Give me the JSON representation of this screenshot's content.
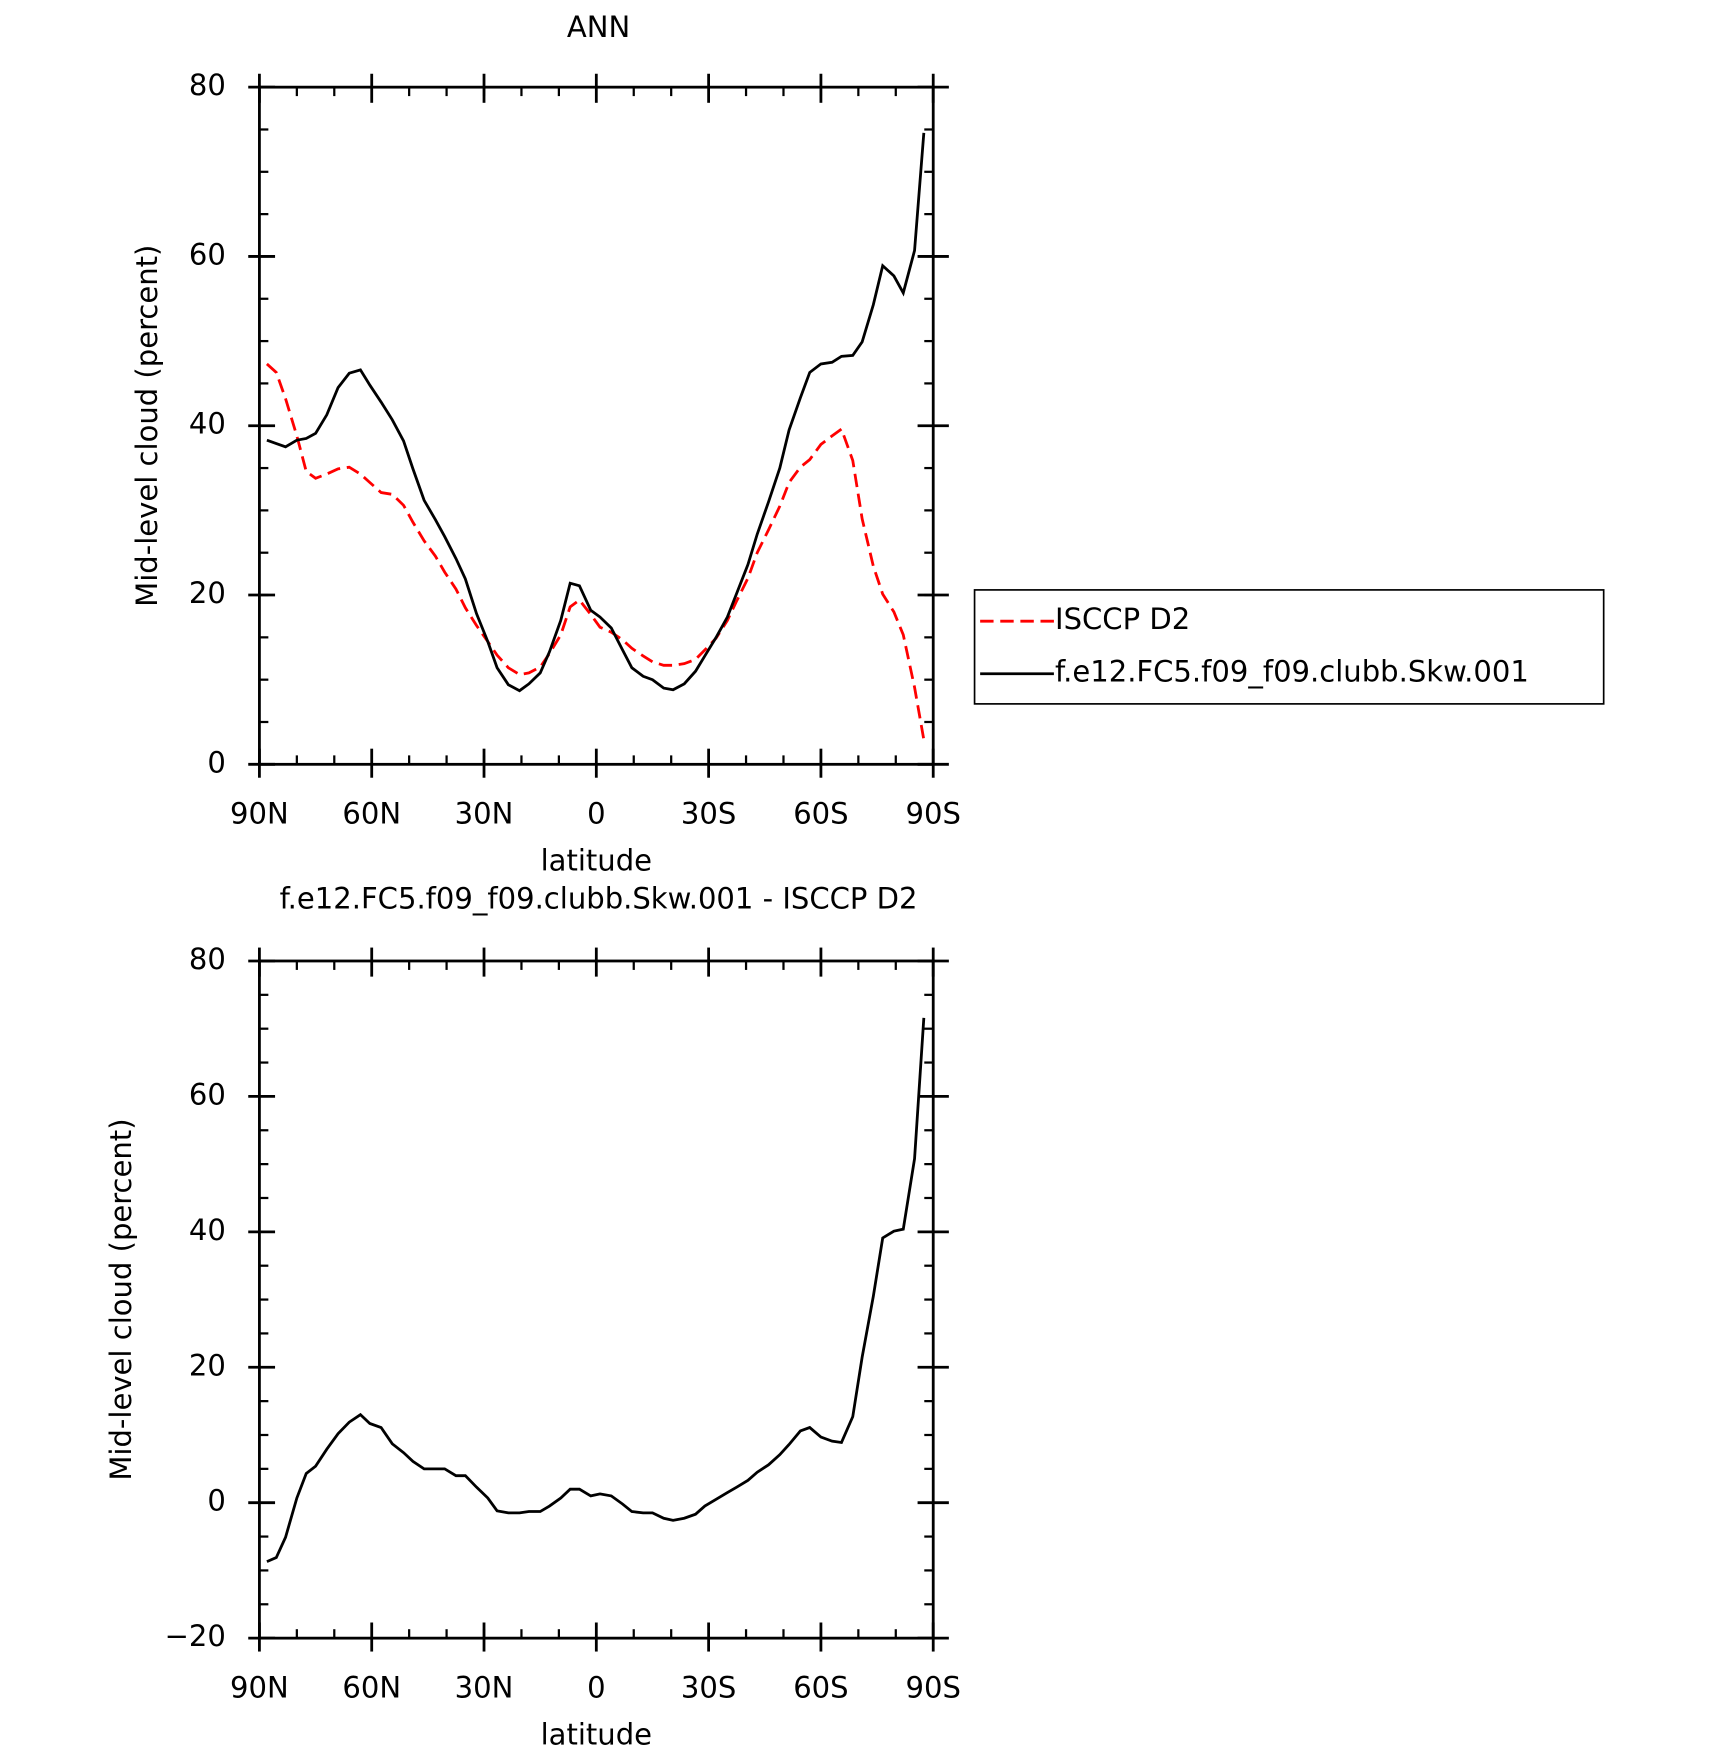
{
  "chart_data": [
    {
      "type": "line",
      "title": "ANN",
      "xlabel": "latitude",
      "ylabel": "Mid-level cloud (percent)",
      "xlim": [
        90,
        -90
      ],
      "ylim": [
        0,
        80
      ],
      "xticks": [
        {
          "value": 90,
          "label": "90N"
        },
        {
          "value": 60,
          "label": "60N"
        },
        {
          "value": 30,
          "label": "30N"
        },
        0,
        {
          "value": -30,
          "label": "30S"
        },
        {
          "value": -60,
          "label": "60S"
        },
        {
          "value": -90,
          "label": "90S"
        }
      ],
      "yticks": [
        0,
        20,
        40,
        60,
        80
      ],
      "legend": "right",
      "x": [
        88,
        85.5,
        83,
        80,
        77.5,
        75,
        72,
        69,
        66,
        63,
        60.5,
        57.5,
        54.5,
        51.5,
        49,
        46,
        43,
        40.5,
        37.5,
        35,
        32,
        29,
        26.5,
        23.5,
        20.5,
        18,
        15,
        12.5,
        9.5,
        7,
        4.5,
        1.5,
        -1,
        -4,
        -7,
        -9.5,
        -12.5,
        -15,
        -18,
        -20.5,
        -23.5,
        -26.5,
        -29,
        -32,
        -35,
        -37.5,
        -40.5,
        -43,
        -46,
        -49,
        -51.5,
        -54.5,
        -57,
        -60,
        -63,
        -65.5,
        -68.5,
        -71,
        -74,
        -76.5,
        -79.5,
        -82,
        -85,
        -87.5
      ],
      "series": [
        {
          "name": "ISCCP D2",
          "color": "#ff0000",
          "dash": true,
          "values": [
            47.3,
            46.3,
            43.2,
            38.8,
            34.6,
            33.8,
            34.3,
            34.9,
            35.1,
            34.3,
            33.3,
            32.1,
            31.9,
            30.6,
            28.6,
            26.4,
            24.6,
            22.7,
            20.7,
            18.5,
            16.4,
            14.5,
            12.9,
            11.4,
            10.6,
            10.8,
            11.5,
            13.1,
            15.3,
            18.6,
            19.4,
            17.7,
            16.2,
            15.6,
            14.7,
            13.7,
            12.8,
            12.1,
            11.7,
            11.7,
            11.9,
            12.4,
            13.5,
            14.9,
            17.0,
            19.3,
            22.0,
            25.0,
            27.7,
            30.5,
            33.3,
            35.1,
            36.0,
            37.8,
            38.8,
            39.6,
            35.9,
            29.0,
            23.4,
            20.1,
            18.0,
            15.3,
            9.1,
            2.9
          ]
        },
        {
          "name": "f.e12.FC5.f09_f09.clubb.Skw.001",
          "color": "#000000",
          "dash": false,
          "values": [
            38.3,
            37.9,
            37.5,
            38.3,
            38.5,
            39.1,
            41.3,
            44.5,
            46.2,
            46.6,
            44.8,
            42.8,
            40.7,
            38.2,
            34.9,
            31.2,
            28.9,
            26.9,
            24.3,
            21.9,
            17.8,
            14.5,
            11.4,
            9.4,
            8.7,
            9.5,
            10.8,
            13.3,
            17.0,
            21.4,
            21.1,
            18.2,
            17.4,
            16.1,
            13.5,
            11.4,
            10.4,
            10.0,
            9.0,
            8.8,
            9.5,
            11.0,
            12.8,
            15.0,
            17.4,
            20.2,
            23.6,
            27.2,
            31.0,
            35.0,
            39.5,
            43.3,
            46.3,
            47.3,
            47.5,
            48.2,
            48.3,
            49.9,
            54.3,
            58.9,
            57.7,
            55.7,
            60.7,
            74.6
          ]
        }
      ]
    },
    {
      "type": "line",
      "title": "f.e12.FC5.f09_f09.clubb.Skw.001 - ISCCP D2",
      "xlabel": "latitude",
      "ylabel": "Mid-level cloud (percent)",
      "xlim": [
        90,
        -90
      ],
      "ylim": [
        -20,
        80
      ],
      "xticks": [
        {
          "value": 90,
          "label": "90N"
        },
        {
          "value": 60,
          "label": "60N"
        },
        {
          "value": 30,
          "label": "30N"
        },
        0,
        {
          "value": -30,
          "label": "30S"
        },
        {
          "value": -60,
          "label": "60S"
        },
        {
          "value": -90,
          "label": "90S"
        }
      ],
      "yticks": [
        {
          "value": -20,
          "label": "−20"
        },
        0,
        20,
        40,
        60,
        80
      ],
      "x": [
        88,
        85.5,
        83,
        80,
        77.5,
        75,
        72,
        69,
        66,
        63,
        60.5,
        57.5,
        54.5,
        51.5,
        49,
        46,
        43,
        40.5,
        37.5,
        35,
        32,
        29,
        26.5,
        23.5,
        20.5,
        18,
        15,
        12.5,
        9.5,
        7,
        4.5,
        1.5,
        -1,
        -4,
        -7,
        -9.5,
        -12.5,
        -15,
        -18,
        -20.5,
        -23.5,
        -26.5,
        -29,
        -32,
        -35,
        -37.5,
        -40.5,
        -43,
        -46,
        -49,
        -51.5,
        -54.5,
        -57,
        -60,
        -63,
        -65.5,
        -68.5,
        -71,
        -74,
        -76.5,
        -79.5,
        -82,
        -85,
        -87.5
      ],
      "series": [
        {
          "color": "#000000",
          "dash": false,
          "values": [
            -8.7,
            -8.1,
            -5.1,
            0.7,
            4.3,
            5.4,
            7.9,
            10.2,
            11.9,
            13.0,
            11.7,
            11.1,
            8.7,
            7.4,
            6.1,
            5.0,
            5.0,
            5.0,
            4.0,
            4.0,
            2.3,
            0.7,
            -1.2,
            -1.5,
            -1.5,
            -1.3,
            -1.3,
            -0.5,
            0.7,
            2.0,
            2.0,
            1.0,
            1.3,
            1.0,
            -0.2,
            -1.3,
            -1.5,
            -1.5,
            -2.3,
            -2.6,
            -2.3,
            -1.7,
            -0.5,
            0.5,
            1.5,
            2.3,
            3.3,
            4.5,
            5.6,
            7.1,
            8.6,
            10.6,
            11.1,
            9.7,
            9.1,
            8.9,
            12.7,
            21.5,
            30.5,
            39.1,
            40.1,
            40.4,
            50.8,
            71.6
          ]
        }
      ]
    }
  ]
}
